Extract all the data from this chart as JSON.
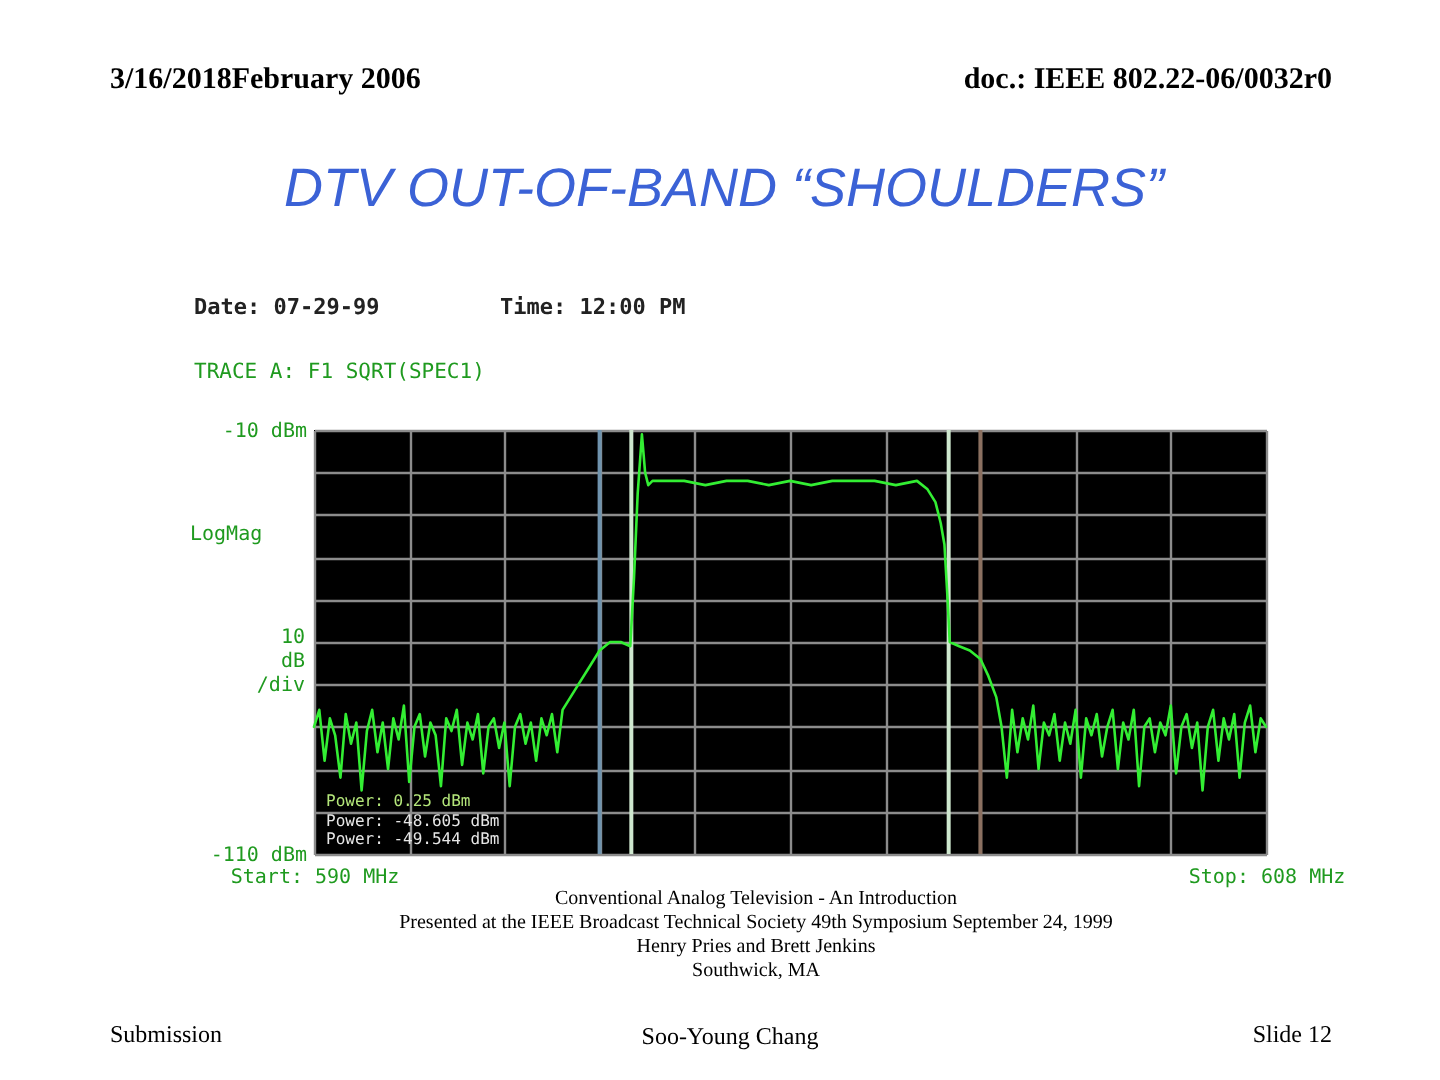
{
  "chart_data": {
    "type": "line",
    "title": "DTV OUT-OF-BAND “SHOULDERS”",
    "ylabel": "10 dB /div",
    "annotations": [
      "3/16/2018February 2006",
      "doc.: IEEE 802.22-06/0032r0",
      "Date: 07-29-99",
      "Time: 12:00 PM",
      "TRACE A: F1 SQRT(SPEC1)",
      "LogMag",
      "Power: 0.25 dBm",
      "Power: -48.605 dBm",
      "Power: -49.544 dBm",
      "Conventional Analog Television - An Introduction",
      "Presented at the IEEE Broadcast Technical Society 49th Symposium September 24, 1999",
      "Henry Pries and Brett Jenkins",
      "Southwick, MA",
      "Submission",
      "Soo-Young Chang",
      "Slide 12"
    ],
    "x": [
      590,
      590.1,
      590.2,
      590.3,
      590.4,
      590.5,
      590.6,
      590.7,
      590.8,
      590.9,
      591,
      591.1,
      591.2,
      591.3,
      591.4,
      591.5,
      591.6,
      591.7,
      591.8,
      591.9,
      592,
      592.1,
      592.2,
      592.3,
      592.4,
      592.5,
      592.6,
      592.7,
      592.8,
      592.9,
      593,
      593.1,
      593.2,
      593.3,
      593.4,
      593.5,
      593.6,
      593.7,
      593.8,
      593.9,
      594,
      594.1,
      594.2,
      594.3,
      594.4,
      594.5,
      594.6,
      594.7,
      594.8,
      595,
      595.2,
      595.4,
      595.6,
      595.8,
      595.98,
      596.05,
      596.12,
      596.2,
      596.26,
      596.32,
      596.4,
      596.6,
      597,
      597.4,
      597.8,
      598.2,
      598.6,
      599,
      599.4,
      599.8,
      600.2,
      600.6,
      601,
      601.4,
      601.6,
      601.75,
      601.85,
      601.92,
      601.98,
      602.02,
      602.2,
      602.4,
      602.6,
      602.75,
      602.9,
      603,
      603.1,
      603.2,
      603.3,
      603.4,
      603.5,
      603.6,
      603.7,
      603.8,
      603.9,
      604,
      604.1,
      604.2,
      604.3,
      604.4,
      604.5,
      604.6,
      604.7,
      604.8,
      604.9,
      605,
      605.1,
      605.2,
      605.3,
      605.4,
      605.5,
      605.6,
      605.7,
      605.8,
      605.9,
      606,
      606.1,
      606.2,
      606.3,
      606.4,
      606.5,
      606.6,
      606.7,
      606.8,
      606.9,
      607,
      607.1,
      607.2,
      607.3,
      607.4,
      607.5,
      607.6,
      607.7,
      607.8,
      607.9,
      608
    ],
    "series": [
      {
        "color": "#33ee33",
        "values": [
          -80,
          -76,
          -88,
          -78,
          -82,
          -92,
          -77,
          -84,
          -79,
          -95,
          -81,
          -76,
          -86,
          -79,
          -90,
          -78,
          -83,
          -75,
          -93,
          -80,
          -77,
          -87,
          -79,
          -82,
          -94,
          -78,
          -81,
          -76,
          -89,
          -79,
          -83,
          -77,
          -91,
          -80,
          -78,
          -85,
          -79,
          -94,
          -80,
          -77,
          -84,
          -79,
          -88,
          -78,
          -82,
          -77,
          -86,
          -76,
          -74,
          -70,
          -66,
          -62,
          -60,
          -60,
          -61,
          -45,
          -25,
          -11,
          -20,
          -23,
          -22,
          -22,
          -22,
          -23,
          -22,
          -22,
          -23,
          -22,
          -23,
          -22,
          -22,
          -22,
          -23,
          -22,
          -24,
          -27,
          -32,
          -37,
          -50,
          -60,
          -61,
          -62,
          -64,
          -68,
          -73,
          -80,
          -92,
          -76,
          -86,
          -78,
          -83,
          -75,
          -90,
          -79,
          -82,
          -77,
          -88,
          -79,
          -84,
          -76,
          -92,
          -78,
          -82,
          -77,
          -87,
          -80,
          -76,
          -90,
          -79,
          -83,
          -76,
          -94,
          -80,
          -78,
          -86,
          -79,
          -82,
          -75,
          -91,
          -80,
          -77,
          -85,
          -79,
          -95,
          -80,
          -76,
          -88,
          -78,
          -83,
          -77,
          -92,
          -79,
          -75,
          -86,
          -78,
          -80
        ]
      }
    ],
    "xlim": [
      590,
      608
    ],
    "ylim": [
      -110,
      -10
    ],
    "xticks": [
      {
        "value": 590,
        "label": "Start: 590 MHz"
      },
      {
        "value": 591.8,
        "label": null
      },
      {
        "value": 593.6,
        "label": null
      },
      {
        "value": 595.4,
        "label": null
      },
      {
        "value": 597.2,
        "label": null
      },
      {
        "value": 599,
        "label": null
      },
      {
        "value": 600.8,
        "label": null
      },
      {
        "value": 602.6,
        "label": null
      },
      {
        "value": 604.4,
        "label": null
      },
      {
        "value": 606.2,
        "label": null
      },
      {
        "value": 608,
        "label": "Stop: 608 MHz"
      }
    ],
    "yticks": [
      {
        "value": -10,
        "label": "-10 dBm"
      },
      {
        "value": -20,
        "label": null
      },
      {
        "value": -30,
        "label": null
      },
      {
        "value": -40,
        "label": null
      },
      {
        "value": -50,
        "label": null
      },
      {
        "value": -60,
        "label": null
      },
      {
        "value": -70,
        "label": null
      },
      {
        "value": -80,
        "label": null
      },
      {
        "value": -90,
        "label": null
      },
      {
        "value": -100,
        "label": null
      },
      {
        "value": -110,
        "label": "-110 dBm"
      }
    ],
    "grid": true,
    "ref_lines": [
      {
        "axis": "x",
        "value": 595.4,
        "color": "#6f93ad"
      },
      {
        "axis": "x",
        "value": 596,
        "color": "#cfe8cf"
      },
      {
        "axis": "x",
        "value": 602,
        "color": "#cfe8cf"
      },
      {
        "axis": "x",
        "value": 602.6,
        "color": "#8b7060"
      }
    ]
  }
}
